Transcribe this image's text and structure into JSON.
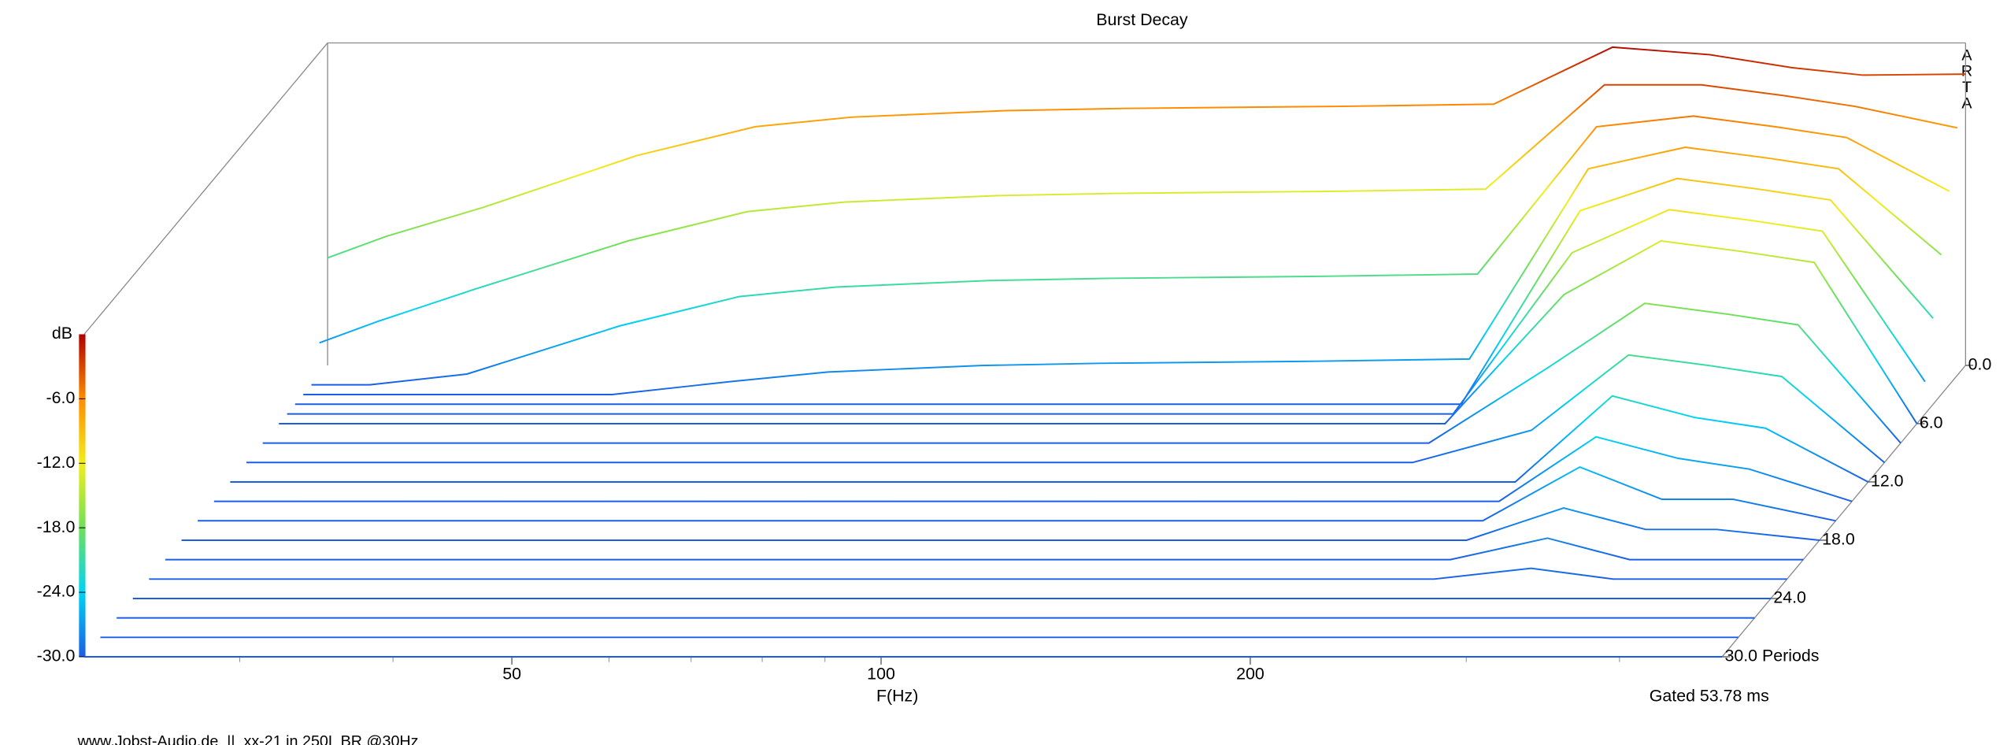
{
  "chart_data": {
    "type": "waterfall",
    "title": "Burst Decay",
    "xlabel": "F(Hz)",
    "ylabel": "dB",
    "note": "Gated 53.78 ms",
    "footer": "www.Jobst-Audio.de  ||  xx-21 in 250L BR @30Hz",
    "brand": "ARTA",
    "log_x": true,
    "xlim": [
      22.4,
      485
    ],
    "xticks": [
      50,
      100,
      200
    ],
    "xminor": [
      30,
      40,
      60,
      70,
      80,
      90,
      300,
      400
    ],
    "ylim": [
      -30,
      0
    ],
    "yticks": [
      {
        "value": -6,
        "label": "-6.0"
      },
      {
        "value": -12,
        "label": "-12.0"
      },
      {
        "value": -18,
        "label": "-18.0"
      },
      {
        "value": -24,
        "label": "-24.0"
      },
      {
        "value": -30,
        "label": "-30.0"
      }
    ],
    "zlim": [
      0,
      30
    ],
    "zticks": [
      {
        "value": 0,
        "label": "0.0"
      },
      {
        "value": 6,
        "label": "6.0"
      },
      {
        "value": 12,
        "label": "12.0"
      },
      {
        "value": 18,
        "label": "18.0"
      },
      {
        "value": 24,
        "label": "24.0"
      },
      {
        "value": 30,
        "label": "30.0 Periods"
      }
    ],
    "colormap": [
      "#1a5ee6",
      "#00d4f5",
      "#6fe05a",
      "#f2ee1c",
      "#ff8c00",
      "#b00000"
    ],
    "frequencies": [
      22.4,
      25,
      30,
      40,
      50,
      60,
      80,
      100,
      150,
      200,
      250,
      300,
      350,
      400,
      485
    ],
    "slices": [
      {
        "period": 0,
        "values": [
          -20,
          -18,
          -15.3,
          -10.5,
          -7.8,
          -6.9,
          -6.3,
          -6.1,
          -5.9,
          -5.7,
          -0.4,
          -1.1,
          -2.3,
          -3,
          -2.9
        ]
      },
      {
        "period": 1,
        "values": [
          -27,
          -25,
          -22,
          -17.5,
          -14.8,
          -13.9,
          -13.3,
          -13.1,
          -12.9,
          -12.7,
          -3,
          -3,
          -4,
          -5,
          -7
        ]
      },
      {
        "period": 2,
        "values": [
          -30,
          -30,
          -29,
          -24.5,
          -21.8,
          -20.9,
          -20.3,
          -20.1,
          -19.9,
          -19.7,
          -6,
          -5,
          -6,
          -7,
          -12
        ]
      },
      {
        "period": 3,
        "values": [
          -30,
          -30,
          -30,
          -30,
          -28.8,
          -27.9,
          -27.3,
          -27.1,
          -26.9,
          -26.7,
          -9,
          -7,
          -8,
          -9,
          -17
        ]
      },
      {
        "period": 4,
        "values": [
          -30,
          -30,
          -30,
          -30,
          -30,
          -30,
          -30,
          -30,
          -30,
          -30,
          -12,
          -9,
          -10,
          -11,
          -22
        ]
      },
      {
        "period": 5,
        "values": [
          -30,
          -30,
          -30,
          -30,
          -30,
          -30,
          -30,
          -30,
          -30,
          -30,
          -15,
          -11,
          -12,
          -13,
          -27
        ]
      },
      {
        "period": 6,
        "values": [
          -30,
          -30,
          -30,
          -30,
          -30,
          -30,
          -30,
          -30,
          -30,
          -30,
          -18,
          -13,
          -14,
          -15,
          -30
        ]
      },
      {
        "period": 8,
        "values": [
          -30,
          -30,
          -30,
          -30,
          -30,
          -30,
          -30,
          -30,
          -30,
          -30,
          -23,
          -17,
          -18,
          -19,
          -30
        ]
      },
      {
        "period": 10,
        "values": [
          -30,
          -30,
          -30,
          -30,
          -30,
          -30,
          -30,
          -30,
          -30,
          -30,
          -27,
          -20,
          -21,
          -22,
          -30
        ]
      },
      {
        "period": 12,
        "values": [
          -30,
          -30,
          -30,
          -30,
          -30,
          -30,
          -30,
          -30,
          -30,
          -30,
          -30,
          -22,
          -24,
          -25,
          -30
        ]
      },
      {
        "period": 14,
        "values": [
          -30,
          -30,
          -30,
          -30,
          -30,
          -30,
          -30,
          -30,
          -30,
          -30,
          -30,
          -24,
          -26,
          -27,
          -30
        ]
      },
      {
        "period": 16,
        "values": [
          -30,
          -30,
          -30,
          -30,
          -30,
          -30,
          -30,
          -30,
          -30,
          -30,
          -30,
          -25,
          -28,
          -28,
          -30
        ]
      },
      {
        "period": 18,
        "values": [
          -30,
          -30,
          -30,
          -30,
          -30,
          -30,
          -30,
          -30,
          -30,
          -30,
          -30,
          -27,
          -29,
          -29,
          -30
        ]
      },
      {
        "period": 20,
        "values": [
          -30,
          -30,
          -30,
          -30,
          -30,
          -30,
          -30,
          -30,
          -30,
          -30,
          -30,
          -28,
          -30,
          -30,
          -30
        ]
      },
      {
        "period": 22,
        "values": [
          -30,
          -30,
          -30,
          -30,
          -30,
          -30,
          -30,
          -30,
          -30,
          -30,
          -30,
          -29,
          -30,
          -30,
          -30
        ]
      },
      {
        "period": 24,
        "values": [
          -30,
          -30,
          -30,
          -30,
          -30,
          -30,
          -30,
          -30,
          -30,
          -30,
          -30,
          -30,
          -30,
          -30,
          -30
        ]
      },
      {
        "period": 26,
        "values": [
          -30,
          -30,
          -30,
          -30,
          -30,
          -30,
          -30,
          -30,
          -30,
          -30,
          -30,
          -30,
          -30,
          -30,
          -30
        ]
      },
      {
        "period": 28,
        "values": [
          -30,
          -30,
          -30,
          -30,
          -30,
          -30,
          -30,
          -30,
          -30,
          -30,
          -30,
          -30,
          -30,
          -30,
          -30
        ]
      },
      {
        "period": 30,
        "values": [
          -30,
          -30,
          -30,
          -30,
          -30,
          -30,
          -30,
          -30,
          -30,
          -30,
          -30,
          -30,
          -30,
          -30,
          -30
        ]
      }
    ]
  }
}
